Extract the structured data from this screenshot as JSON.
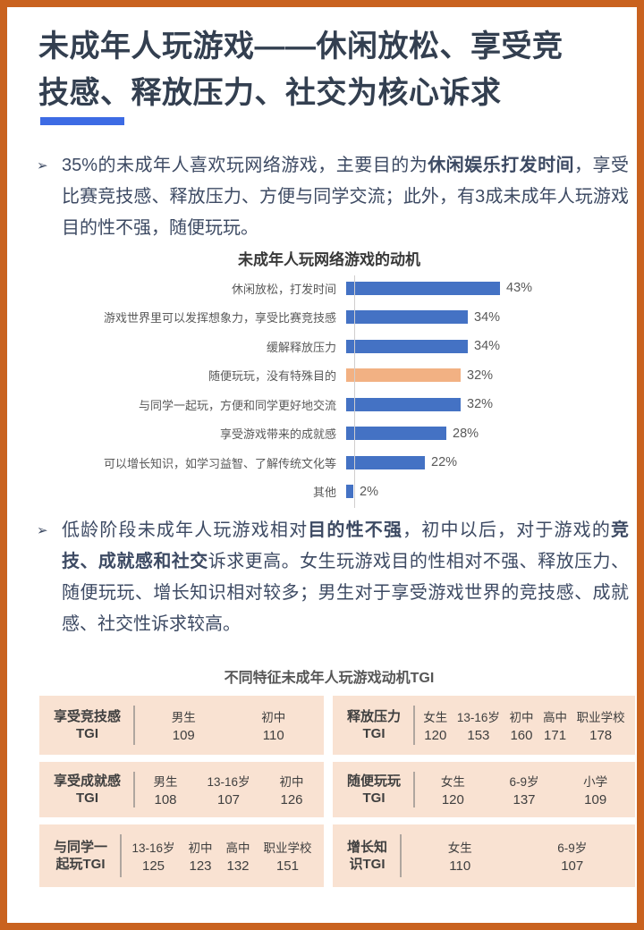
{
  "page": {
    "title": "未成年人玩游戏——休闲放松、享受竞技感、释放压力、社交为核心诉求",
    "bullet_marker": "➢",
    "border_color": "#C9621F",
    "accent_color": "#3D6BE4"
  },
  "bullets": [
    {
      "segments": [
        {
          "text": "35%的未成年人喜欢玩网络游戏，主要目的为",
          "bold": false
        },
        {
          "text": "休闲娱乐打发时间",
          "bold": true
        },
        {
          "text": "，享受比赛竞技感、释放压力、方便与同学交流；此外，有3成未成年人玩游戏目的性不强，随便玩玩。",
          "bold": false
        }
      ]
    },
    {
      "segments": [
        {
          "text": "低龄阶段未成年人玩游戏相对",
          "bold": false
        },
        {
          "text": "目的性不强",
          "bold": true
        },
        {
          "text": "，初中以后，对于游戏的",
          "bold": false
        },
        {
          "text": "竞技、成就感和社交",
          "bold": true
        },
        {
          "text": "诉求更高。女生玩游戏目的性相对不强、释放压力、随便玩玩、增长知识相对较多；男生对于享受游戏世界的竞技感、成就感、社交性诉求较高。",
          "bold": false
        }
      ]
    }
  ],
  "chart_data": {
    "type": "bar",
    "orientation": "horizontal",
    "title": "未成年人玩网络游戏的动机",
    "categories": [
      "休闲放松，打发时间",
      "游戏世界里可以发挥想象力，享受比赛竞技感",
      "缓解释放压力",
      "随便玩玩，没有特殊目的",
      "与同学一起玩，方便和同学更好地交流",
      "享受游戏带来的成就感",
      "可以增长知识，如学习益智、了解传统文化等",
      "其他"
    ],
    "values": [
      43,
      34,
      34,
      32,
      32,
      28,
      22,
      2
    ],
    "value_labels": [
      "43%",
      "34%",
      "34%",
      "32%",
      "32%",
      "28%",
      "22%",
      "2%"
    ],
    "highlight_index": 3,
    "bar_color": "#4472C4",
    "highlight_color": "#F2B183",
    "xlim": [
      0,
      45
    ],
    "grid": false,
    "legend": "none"
  },
  "tgi": {
    "title": "不同特征未成年人玩游戏动机TGI",
    "cards": [
      {
        "label": "享受竞技感\nTGI",
        "groups": [
          {
            "name": "男生",
            "value": "109"
          },
          {
            "name": "初中",
            "value": "110"
          }
        ]
      },
      {
        "label": "释放压力\nTGI",
        "groups": [
          {
            "name": "女生",
            "value": "120"
          },
          {
            "name": "13-16岁",
            "value": "153"
          },
          {
            "name": "初中",
            "value": "160"
          },
          {
            "name": "高中",
            "value": "171"
          },
          {
            "name": "职业学校",
            "value": "178"
          }
        ]
      },
      {
        "label": "享受成就感\nTGI",
        "groups": [
          {
            "name": "男生",
            "value": "108"
          },
          {
            "name": "13-16岁",
            "value": "107"
          },
          {
            "name": "初中",
            "value": "126"
          }
        ]
      },
      {
        "label": "随便玩玩\nTGI",
        "groups": [
          {
            "name": "女生",
            "value": "120"
          },
          {
            "name": "6-9岁",
            "value": "137"
          },
          {
            "name": "小学",
            "value": "109"
          }
        ]
      },
      {
        "label": "与同学一\n起玩TGI",
        "groups": [
          {
            "name": "13-16岁",
            "value": "125"
          },
          {
            "name": "初中",
            "value": "123"
          },
          {
            "name": "高中",
            "value": "132"
          },
          {
            "name": "职业学校",
            "value": "151"
          }
        ]
      },
      {
        "label": "增长知\n识TGI",
        "groups": [
          {
            "name": "女生",
            "value": "110"
          },
          {
            "name": "6-9岁",
            "value": "107"
          }
        ]
      }
    ]
  }
}
